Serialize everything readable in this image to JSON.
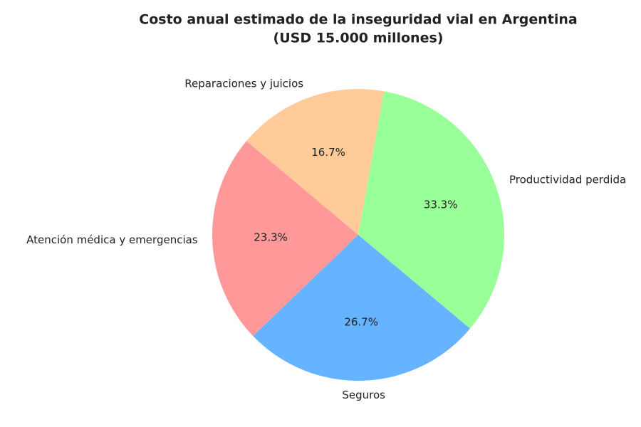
{
  "chart_data": {
    "type": "pie",
    "title": "Costo anual estimado de la inseguridad vial en Argentina",
    "subtitle": "(USD 15.000 millones)",
    "categories": [
      "Productividad perdida",
      "Reparaciones y juicios",
      "Atención médica y emergencias",
      "Seguros"
    ],
    "values": [
      33.3,
      16.7,
      23.3,
      26.7
    ],
    "value_labels": [
      "33.3%",
      "16.7%",
      "23.3%",
      "26.7%"
    ],
    "colors": [
      "#99ff99",
      "#ffcc99",
      "#ff9999",
      "#66b3ff"
    ]
  }
}
